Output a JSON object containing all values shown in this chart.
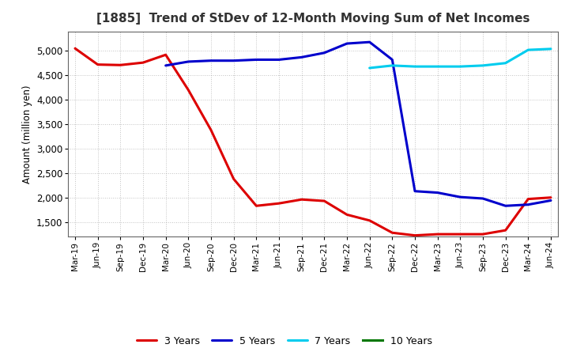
{
  "title": "[1885]  Trend of StDev of 12-Month Moving Sum of Net Incomes",
  "ylabel": "Amount (million yen)",
  "background_color": "#ffffff",
  "grid_color": "#999999",
  "ylim": [
    1200,
    5400
  ],
  "yticks": [
    1500,
    2000,
    2500,
    3000,
    3500,
    4000,
    4500,
    5000
  ],
  "x_labels": [
    "Mar-19",
    "Jun-19",
    "Sep-19",
    "Dec-19",
    "Mar-20",
    "Jun-20",
    "Sep-20",
    "Dec-20",
    "Mar-21",
    "Jun-21",
    "Sep-21",
    "Dec-21",
    "Mar-22",
    "Jun-22",
    "Sep-22",
    "Dec-22",
    "Mar-23",
    "Jun-23",
    "Sep-23",
    "Dec-23",
    "Mar-24",
    "Jun-24"
  ],
  "series": {
    "3 Years": {
      "color": "#dd0000",
      "values": [
        5050,
        4720,
        4710,
        4760,
        4920,
        4200,
        3380,
        2380,
        1830,
        1880,
        1960,
        1930,
        1650,
        1530,
        1280,
        1225,
        1250,
        1250,
        1250,
        1330,
        1970,
        2000
      ]
    },
    "5 Years": {
      "color": "#0000cc",
      "values": [
        null,
        null,
        null,
        null,
        4700,
        4780,
        4800,
        4800,
        4820,
        4820,
        4870,
        4960,
        5150,
        5180,
        4820,
        2130,
        2100,
        2010,
        1980,
        1830,
        1855,
        1940
      ]
    },
    "7 Years": {
      "color": "#00ccee",
      "values": [
        null,
        null,
        null,
        null,
        null,
        null,
        null,
        null,
        null,
        null,
        null,
        null,
        null,
        4650,
        4700,
        4680,
        4680,
        4680,
        4700,
        4750,
        5020,
        5040
      ]
    },
    "10 Years": {
      "color": "#007700",
      "values": [
        null,
        null,
        null,
        null,
        null,
        null,
        null,
        null,
        null,
        null,
        null,
        null,
        null,
        null,
        null,
        null,
        null,
        null,
        null,
        null,
        null,
        null
      ]
    }
  }
}
